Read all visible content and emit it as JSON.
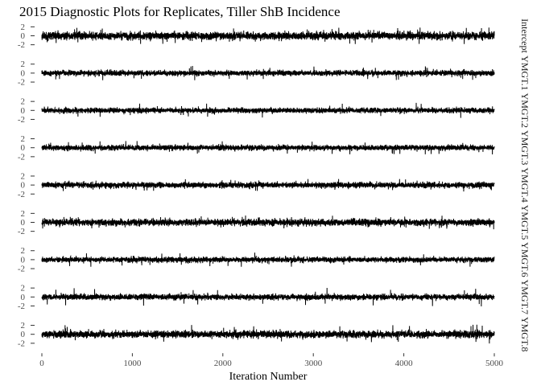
{
  "chart_data": {
    "type": "line",
    "title": "2015 Diagnostic Plots for Replicates, Tiller ShB Incidence",
    "xlabel": "Iteration Number",
    "ylabel": "",
    "xlim": [
      0,
      5000
    ],
    "ylim": [
      -2.6,
      2.6
    ],
    "x_ticks": [
      "0",
      "1000",
      "2000",
      "3000",
      "4000",
      "5000"
    ],
    "y_ticks": [
      "2",
      "0",
      "-2"
    ],
    "iterations": 4950,
    "grid": false,
    "facets": [
      {
        "label": "Intercept",
        "seed": 11,
        "sd": 0.42,
        "spike": 1.9
      },
      {
        "label": "YMGT.1",
        "seed": 23,
        "sd": 0.28,
        "spike": 1.6
      },
      {
        "label": "YMGT.2",
        "seed": 37,
        "sd": 0.28,
        "spike": 1.7
      },
      {
        "label": "YMGT.3",
        "seed": 41,
        "sd": 0.28,
        "spike": 1.5
      },
      {
        "label": "YMGT.4",
        "seed": 53,
        "sd": 0.3,
        "spike": 1.5
      },
      {
        "label": "YMGT.5",
        "seed": 67,
        "sd": 0.36,
        "spike": 1.6
      },
      {
        "label": "YMGT.6",
        "seed": 71,
        "sd": 0.28,
        "spike": 1.6
      },
      {
        "label": "YMGT.7",
        "seed": 83,
        "sd": 0.3,
        "spike": 2.1
      },
      {
        "label": "YMGT.8",
        "seed": 97,
        "sd": 0.38,
        "spike": 2.2
      }
    ]
  }
}
